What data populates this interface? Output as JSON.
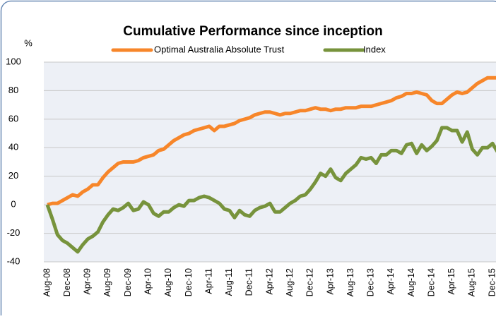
{
  "chart_data": {
    "type": "line",
    "title": "Cumulative Performance since inception",
    "y_axis_label": "%",
    "categories": [
      "Aug-08",
      null,
      null,
      null,
      "Dec-08",
      null,
      null,
      null,
      "Apr-09",
      null,
      null,
      null,
      "Aug-09",
      null,
      null,
      null,
      "Dec-09",
      null,
      null,
      null,
      "Apr-10",
      null,
      null,
      null,
      "Aug-10",
      null,
      null,
      null,
      "Dec-10",
      null,
      null,
      null,
      "Apr-11",
      null,
      null,
      null,
      "Aug-11",
      null,
      null,
      null,
      "Dec-11",
      null,
      null,
      null,
      "Apr-12",
      null,
      null,
      null,
      "Aug-12",
      null,
      null,
      null,
      "Dec-12",
      null,
      null,
      null,
      "Apr-13",
      null,
      null,
      null,
      "Aug-13",
      null,
      null,
      null,
      "Dec-13",
      null,
      null,
      null,
      "Apr-14",
      null,
      null,
      null,
      "Aug-14",
      null,
      null,
      null,
      "Dec-14",
      null,
      null,
      null,
      "Apr-15",
      null,
      null,
      null,
      "Aug-15",
      null,
      null,
      null,
      "Dec-15",
      null
    ],
    "series": [
      {
        "name": "Optimal Australia Absolute Trust",
        "color": "#f7862a",
        "values": [
          0,
          1,
          1,
          3,
          5,
          7,
          6,
          9,
          11,
          14,
          14,
          19,
          23,
          26,
          29,
          30,
          30,
          30,
          31,
          33,
          34,
          35,
          38,
          39,
          42,
          45,
          47,
          49,
          50,
          52,
          53,
          54,
          55,
          52,
          55,
          55,
          56,
          57,
          59,
          60,
          61,
          63,
          64,
          65,
          65,
          64,
          63,
          64,
          64,
          65,
          66,
          66,
          67,
          68,
          67,
          67,
          66,
          67,
          67,
          68,
          68,
          68,
          69,
          69,
          69,
          70,
          71,
          72,
          73,
          75,
          76,
          78,
          78,
          79,
          78,
          77,
          73,
          71,
          71,
          74,
          77,
          79,
          78,
          79,
          82,
          85,
          87,
          89,
          89,
          89
        ]
      },
      {
        "name": "Index",
        "color": "#77933c",
        "values": [
          0,
          -10,
          -21,
          -25,
          -27,
          -30,
          -33,
          -28,
          -24,
          -22,
          -19,
          -12,
          -7,
          -3,
          -4,
          -2,
          1,
          -4,
          -3,
          2,
          0,
          -6,
          -8,
          -5,
          -5,
          -2,
          0,
          -1,
          3,
          3,
          5,
          6,
          5,
          3,
          1,
          -3,
          -4,
          -9,
          -4,
          -7,
          -8,
          -4,
          -2,
          -1,
          1,
          -5,
          -5,
          -2,
          1,
          3,
          6,
          7,
          11,
          16,
          22,
          20,
          25,
          19,
          17,
          22,
          25,
          28,
          33,
          32,
          33,
          29,
          35,
          35,
          38,
          38,
          36,
          42,
          43,
          36,
          42,
          38,
          41,
          45,
          54,
          54,
          52,
          52,
          44,
          51,
          39,
          35,
          40,
          40,
          43,
          37
        ]
      }
    ],
    "ylim": [
      -40,
      100
    ],
    "yticks": [
      -40,
      -20,
      0,
      20,
      40,
      60,
      80,
      100
    ],
    "grid": true,
    "negative_tick_color": "#ff0000",
    "legend": "top"
  }
}
